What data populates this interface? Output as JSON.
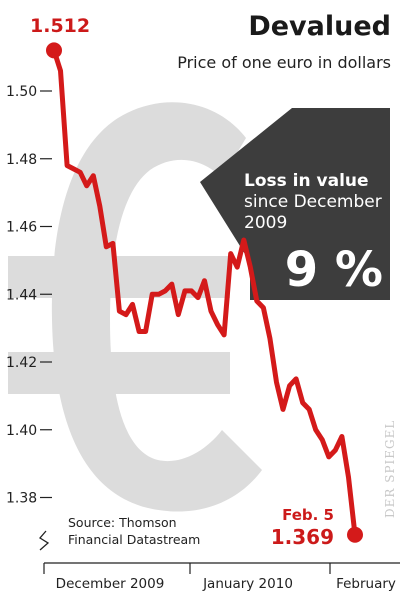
{
  "header": {
    "title": "Devalued",
    "subtitle": "Price of one euro in dollars"
  },
  "callout": {
    "line1": "Loss in value",
    "line2": "since December",
    "line3": "2009",
    "value": "9 %"
  },
  "annotations": {
    "start_value": "1.512",
    "end_date": "Feb. 5",
    "end_value": "1.369",
    "source_line1": "Source: Thomson",
    "source_line2": "Financial Datastream",
    "watermark": "DER SPIEGEL"
  },
  "colors": {
    "line": "#d41a1a",
    "euro_symbol": "#dcdcdc",
    "callout_box": "#3d3d3d"
  },
  "chart_data": {
    "type": "line",
    "title": "Devalued",
    "subtitle": "Price of one euro in dollars",
    "xlabel": "",
    "ylabel": "",
    "ylim": [
      1.365,
      1.52
    ],
    "yticks": [
      1.5,
      1.48,
      1.46,
      1.44,
      1.42,
      1.4,
      1.38
    ],
    "ytick_labels": [
      "1.50",
      "1.48",
      "1.46",
      "1.44",
      "1.42",
      "1.40",
      "1.38"
    ],
    "xtick_labels": [
      "December 2009",
      "January 2010",
      "February"
    ],
    "grid": false,
    "series": [
      {
        "values": [
          1.512,
          1.506,
          1.478,
          1.477,
          1.476,
          1.472,
          1.475,
          1.466,
          1.454,
          1.455,
          1.435,
          1.434,
          1.437,
          1.429,
          1.429,
          1.44,
          1.44,
          1.441,
          1.443,
          1.434,
          1.441,
          1.441,
          1.439,
          1.444,
          1.435,
          1.431,
          1.428,
          1.452,
          1.448,
          1.456,
          1.448,
          1.438,
          1.436,
          1.427,
          1.414,
          1.406,
          1.413,
          1.415,
          1.408,
          1.406,
          1.4,
          1.397,
          1.392,
          1.394,
          1.398,
          1.386,
          1.369
        ]
      }
    ]
  }
}
